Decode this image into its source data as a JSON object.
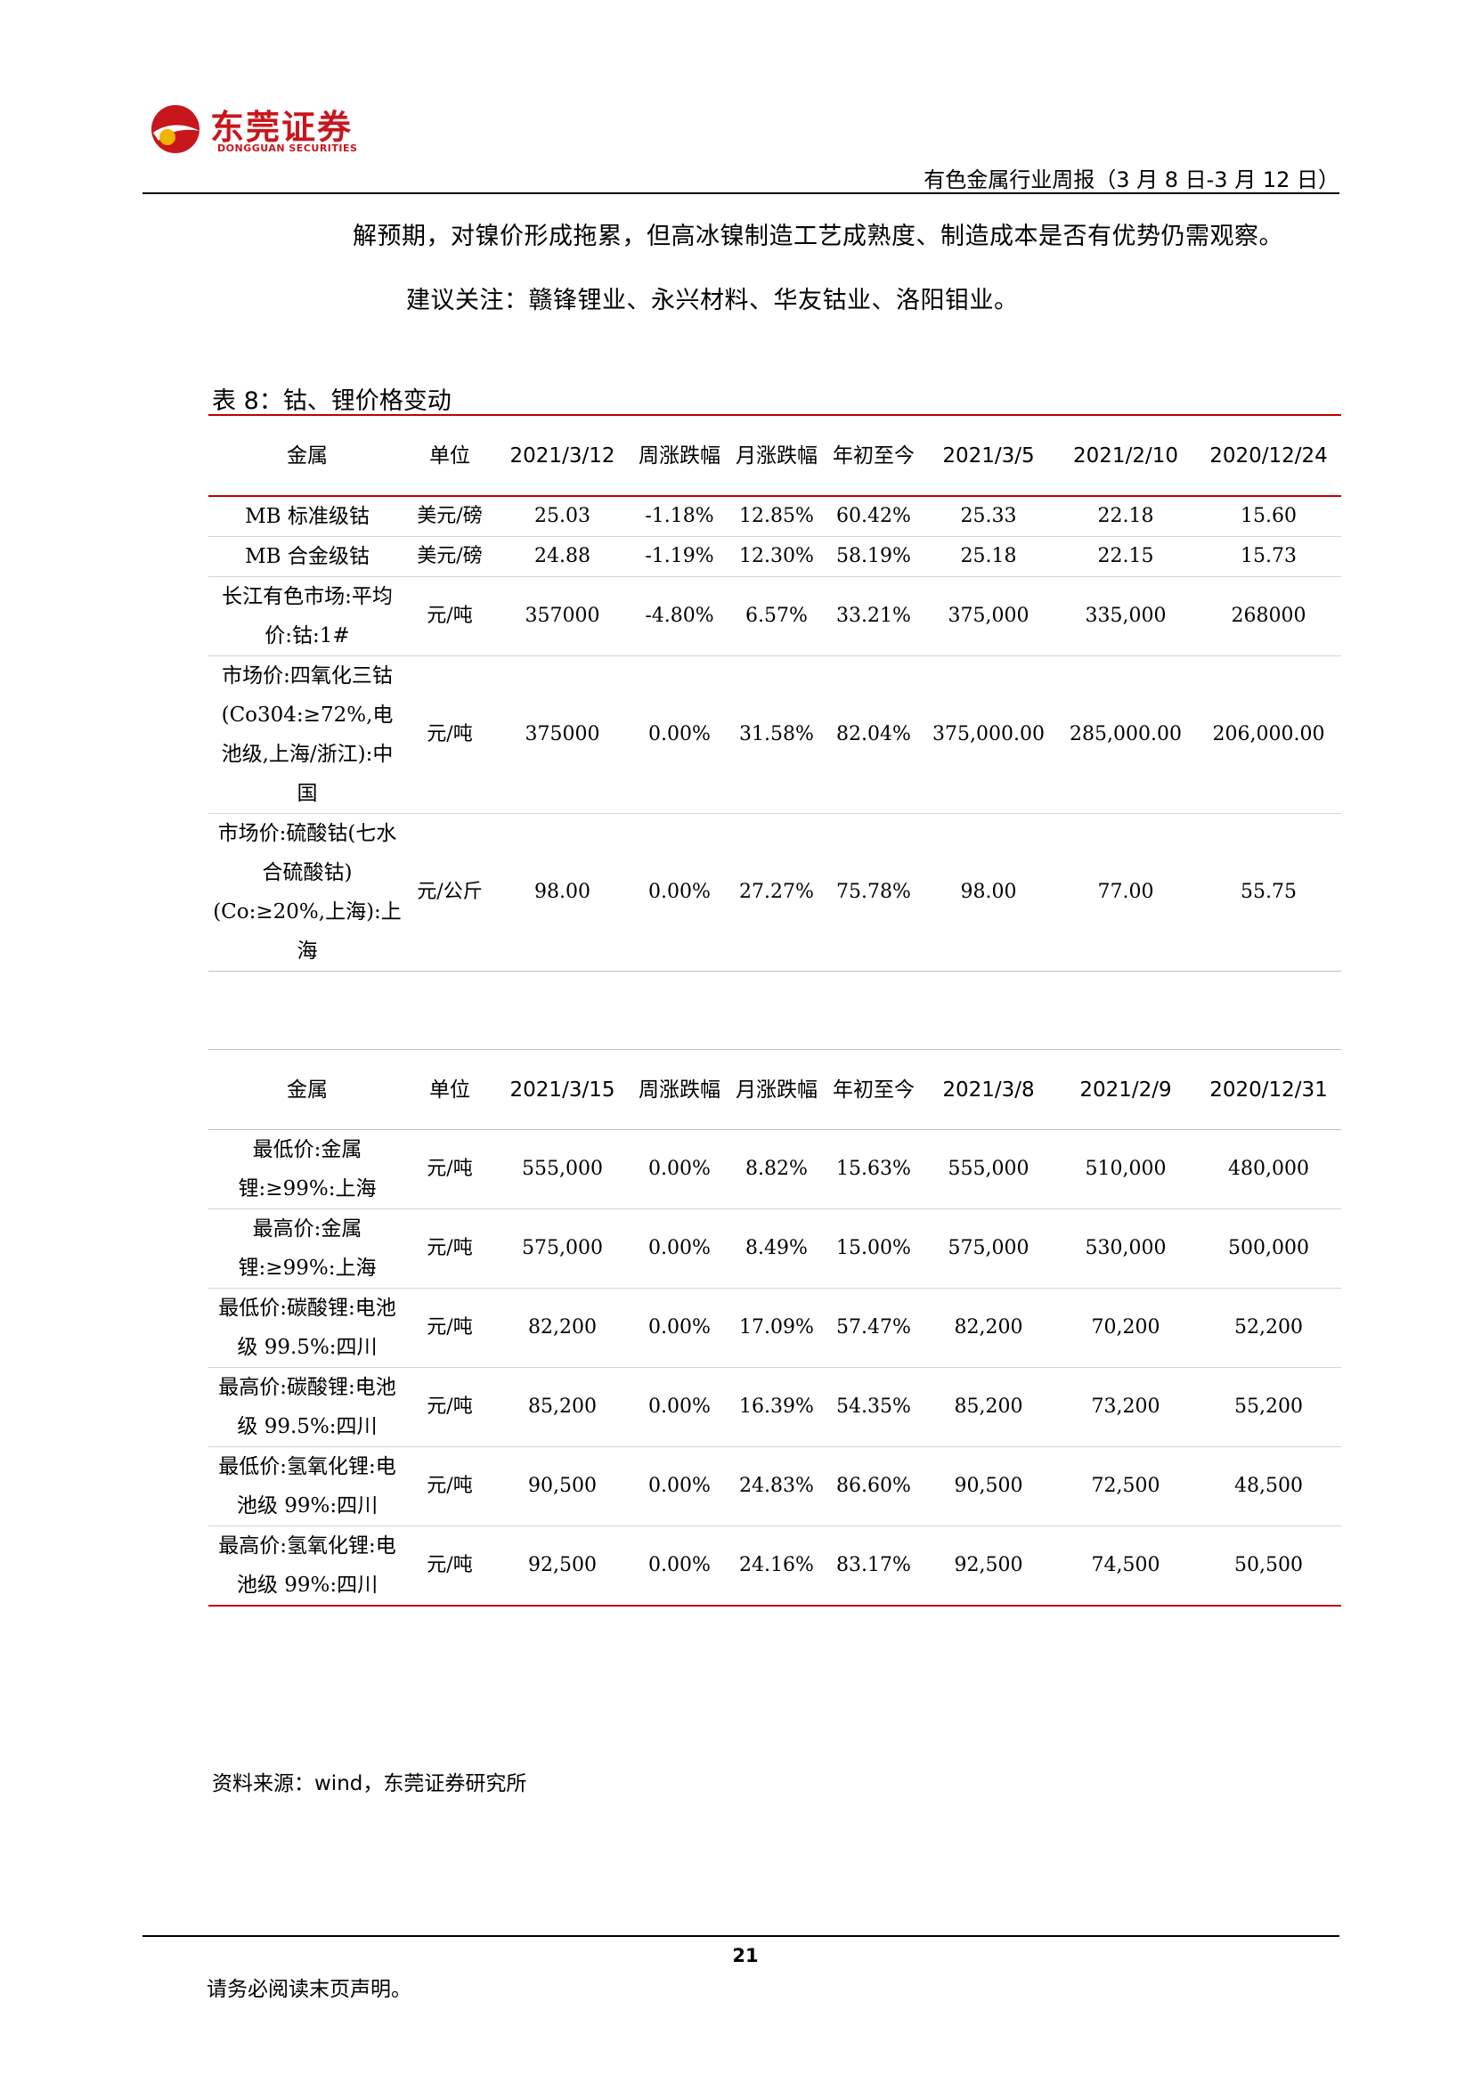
{
  "brand": {
    "name_cn": "东莞证券",
    "name_en": "DONGGUAN SECURITIES",
    "color": "#c8161d"
  },
  "header": {
    "title": "有色金属行业周报（3 月 8 日-3 月 12 日）"
  },
  "body": {
    "paragraph_1": "解预期，对镍价形成拖累，但高冰镍制造工艺成熟度、制造成本是否有优势仍需观察。",
    "paragraph_2": "建议关注：赣锋锂业、永兴材料、华友钴业、洛阳钼业。"
  },
  "table": {
    "title": "表 8：钴、锂价格变动",
    "cobalt": {
      "headers": [
        "金属",
        "单位",
        "2021/3/12",
        "周涨跌幅",
        "月涨跌幅",
        "年初至今",
        "2021/3/5",
        "2021/2/10",
        "2020/12/24"
      ],
      "rows": [
        [
          "MB 标准级钴",
          "美元/磅",
          "25.03",
          "-1.18%",
          "12.85%",
          "60.42%",
          "25.33",
          "22.18",
          "15.60"
        ],
        [
          "MB 合金级钴",
          "美元/磅",
          "24.88",
          "-1.19%",
          "12.30%",
          "58.19%",
          "25.18",
          "22.15",
          "15.73"
        ],
        [
          "长江有色市场:平均价:钴:1#",
          "元/吨",
          "357000",
          "-4.80%",
          "6.57%",
          "33.21%",
          "375,000",
          "335,000",
          "268000"
        ],
        [
          "市场价:四氧化三钴(Co304:≥72%,电池级,上海/浙江):中国",
          "元/吨",
          "375000",
          "0.00%",
          "31.58%",
          "82.04%",
          "375,000.00",
          "285,000.00",
          "206,000.00"
        ],
        [
          "市场价:硫酸钴(七水合硫酸钴)(Co:≥20%,上海):上海",
          "元/公斤",
          "98.00",
          "0.00%",
          "27.27%",
          "75.78%",
          "98.00",
          "77.00",
          "55.75"
        ]
      ]
    },
    "lithium": {
      "headers": [
        "金属",
        "单位",
        "2021/3/15",
        "周涨跌幅",
        "月涨跌幅",
        "年初至今",
        "2021/3/8",
        "2021/2/9",
        "2020/12/31"
      ],
      "rows": [
        [
          "最低价:金属锂:≥99%:上海",
          "元/吨",
          "555,000",
          "0.00%",
          "8.82%",
          "15.63%",
          "555,000",
          "510,000",
          "480,000"
        ],
        [
          "最高价:金属锂:≥99%:上海",
          "元/吨",
          "575,000",
          "0.00%",
          "8.49%",
          "15.00%",
          "575,000",
          "530,000",
          "500,000"
        ],
        [
          "最低价:碳酸锂:电池级 99.5%:四川",
          "元/吨",
          "82,200",
          "0.00%",
          "17.09%",
          "57.47%",
          "82,200",
          "70,200",
          "52,200"
        ],
        [
          "最高价:碳酸锂:电池级 99.5%:四川",
          "元/吨",
          "85,200",
          "0.00%",
          "16.39%",
          "54.35%",
          "85,200",
          "73,200",
          "55,200"
        ],
        [
          "最低价:氢氧化锂:电池级 99%:四川",
          "元/吨",
          "90,500",
          "0.00%",
          "24.83%",
          "86.60%",
          "90,500",
          "72,500",
          "48,500"
        ],
        [
          "最高价:氢氧化锂:电池级 99%:四川",
          "元/吨",
          "92,500",
          "0.00%",
          "24.16%",
          "83.17%",
          "92,500",
          "74,500",
          "50,500"
        ]
      ]
    },
    "source": "资料来源：wind，东莞证券研究所"
  },
  "footer": {
    "page_number": "21",
    "disclaimer": "请务必阅读末页声明。"
  }
}
